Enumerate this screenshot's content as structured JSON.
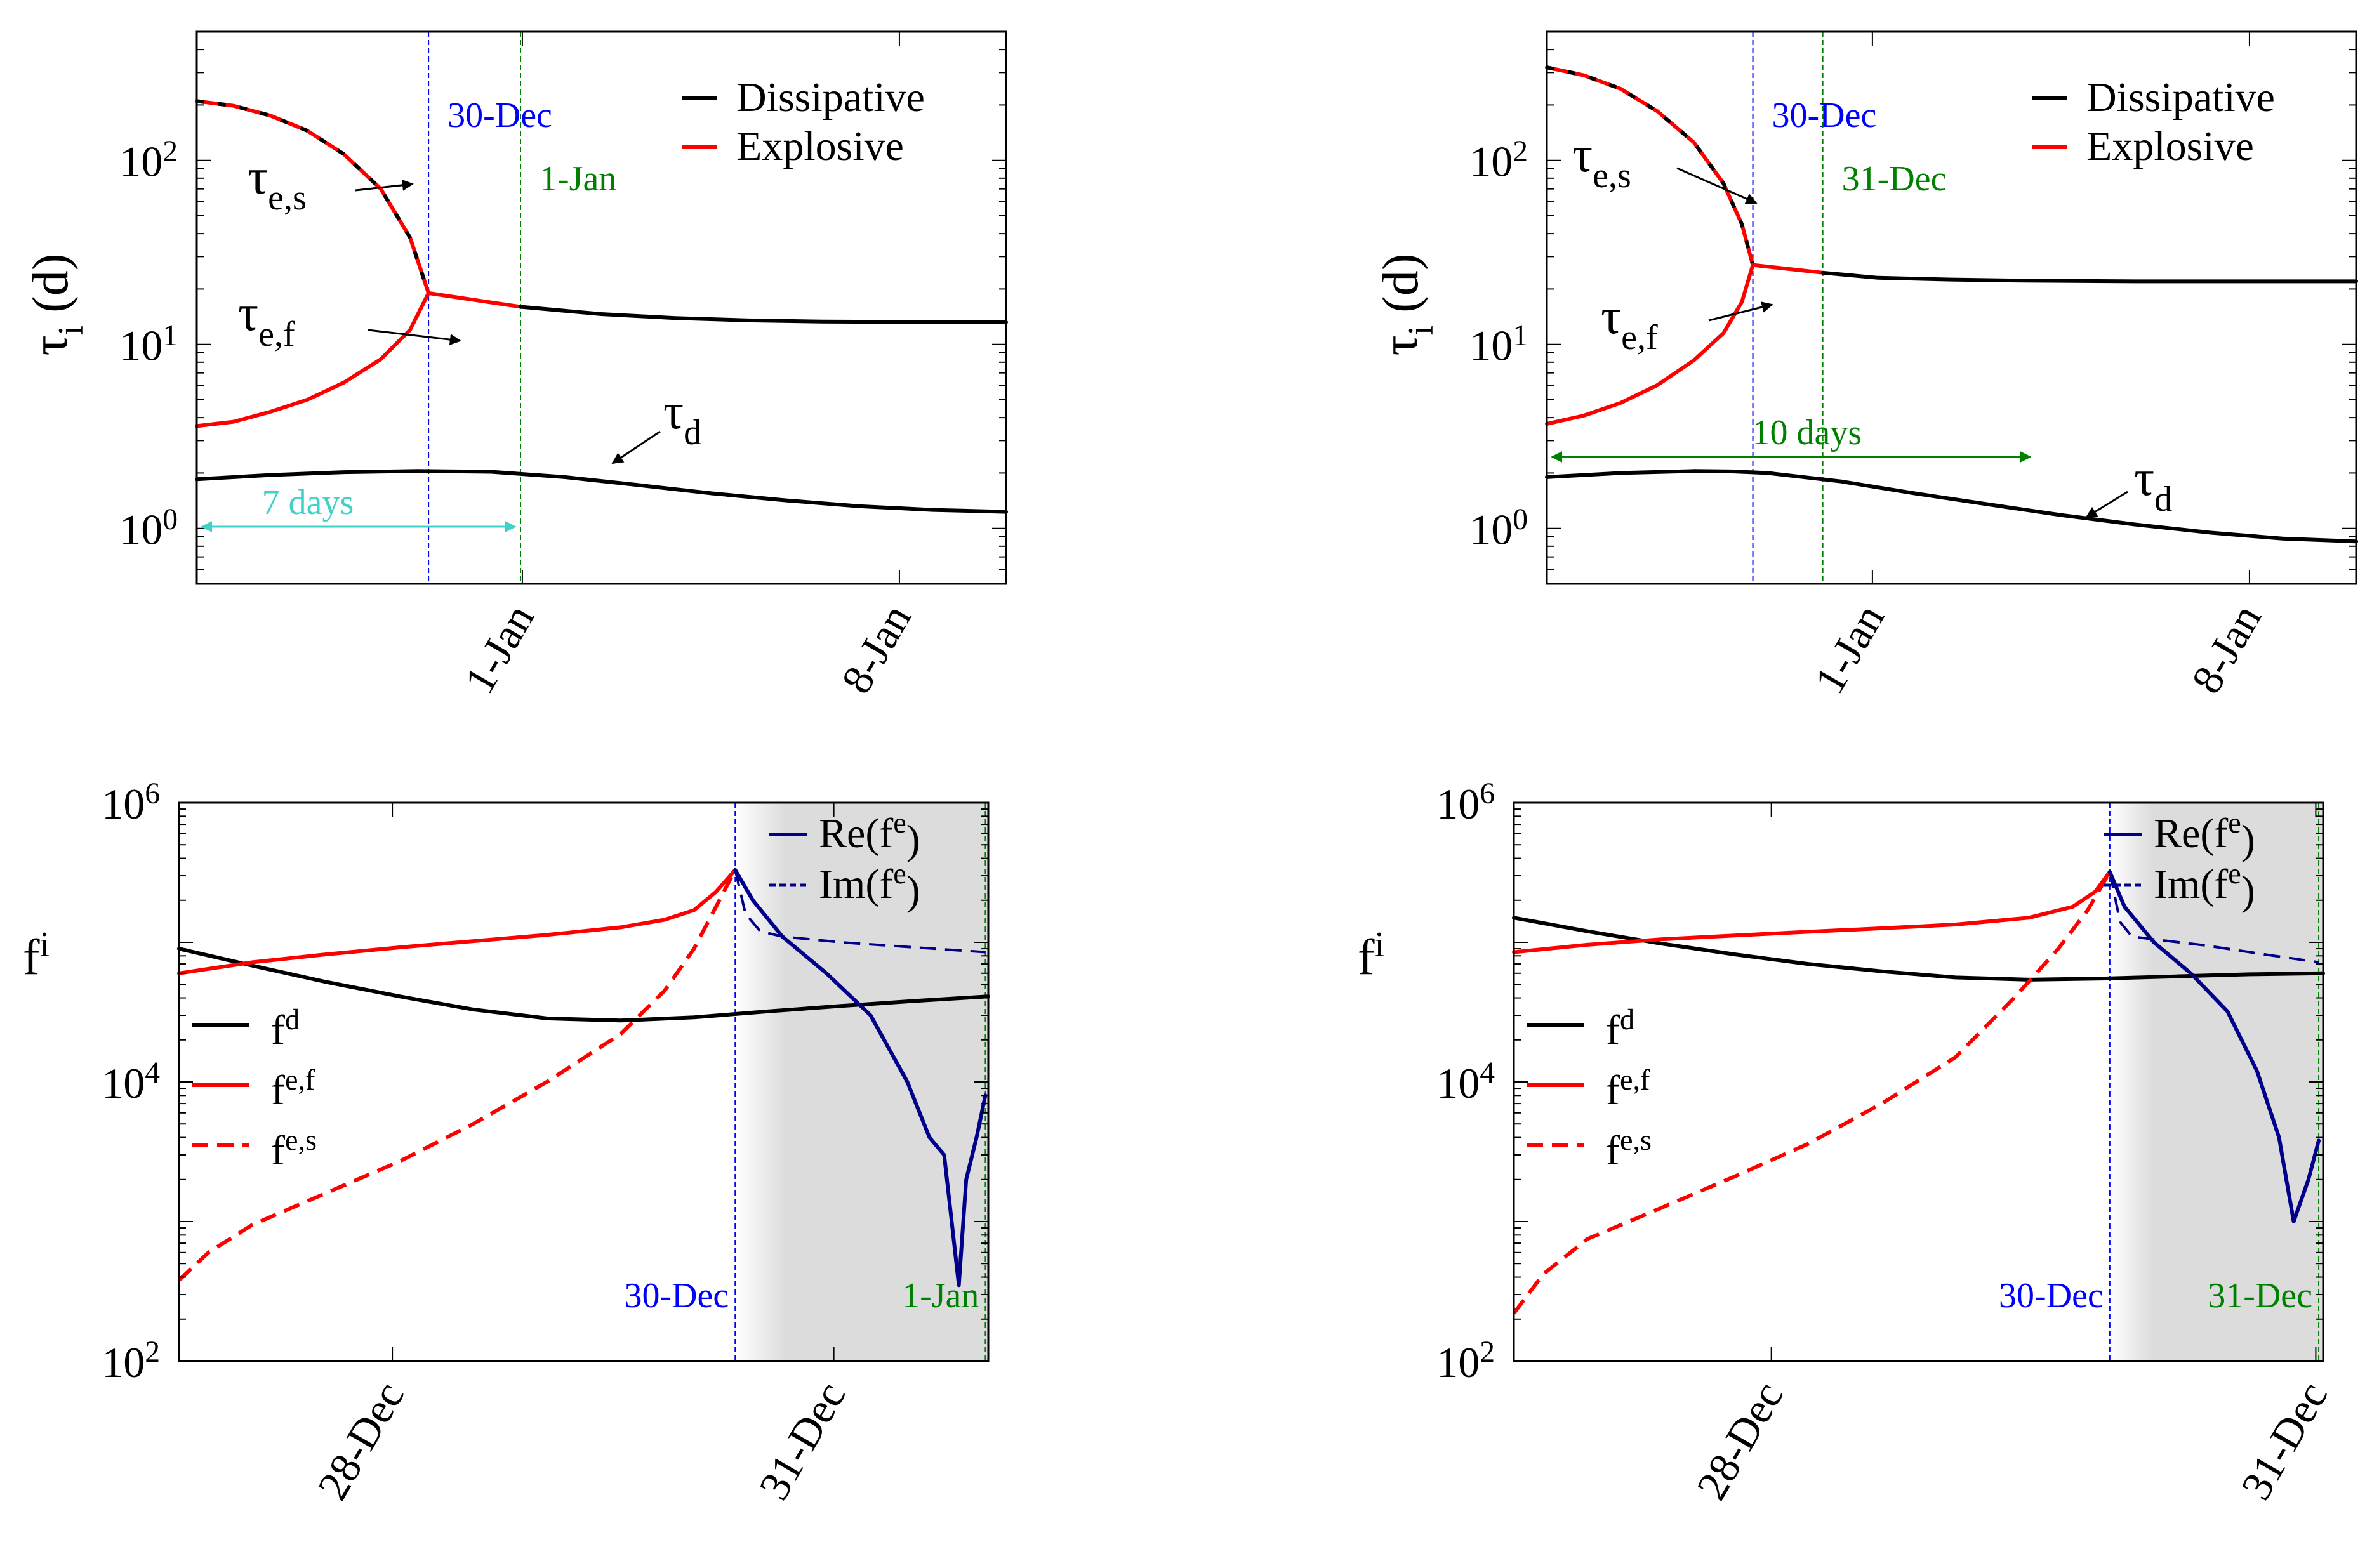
{
  "figure": {
    "description_labels": {
      "date_labels": [
        "30-Dec",
        "1-Jan",
        "31-Dec",
        "28-Dec",
        "8-Jan"
      ]
    }
  },
  "chart_data": [
    {
      "type": "line",
      "panel": "top-left",
      "ylabel": "τi (d)",
      "yscale": "log",
      "ylim": [
        0.5,
        500
      ],
      "xlim": [
        0,
        22
      ],
      "x_unit": "days",
      "yticks": [
        {
          "v": 1,
          "b": "10",
          "e": "0"
        },
        {
          "v": 10,
          "b": "10",
          "e": "1"
        },
        {
          "v": 100,
          "b": "10",
          "e": "2"
        }
      ],
      "xticks": [
        {
          "x": 8.85,
          "label": "1-Jan"
        },
        {
          "x": 19.1,
          "label": "8-Jan"
        }
      ],
      "vlines": [
        {
          "x": 6.3,
          "color": "#0000ff",
          "label": "30-Dec"
        },
        {
          "x": 8.8,
          "color": "#008000",
          "label": "1-Jan"
        }
      ],
      "legend": {
        "position": "top-right",
        "entries": [
          "Dissipative",
          "Explosive"
        ]
      },
      "arrow_label": "7 days",
      "arrow_color": "#3fd3c8",
      "annotations": [
        {
          "text": "τ",
          "sub": "e,s"
        },
        {
          "text": "τ",
          "sub": "e,f"
        },
        {
          "text": "τ",
          "sub": "d"
        }
      ],
      "series": [
        {
          "name": "τd",
          "color": "#000000",
          "style": "solid",
          "x": [
            0,
            2,
            4,
            6,
            8,
            10,
            12,
            14,
            16,
            18,
            20,
            22
          ],
          "y": [
            1.85,
            1.95,
            2.02,
            2.05,
            2.03,
            1.9,
            1.72,
            1.55,
            1.42,
            1.32,
            1.26,
            1.23
          ]
        },
        {
          "name": "Explosive (upper)",
          "color": "#ff0000",
          "style": "solid",
          "x": [
            0,
            1,
            2,
            3,
            4,
            5,
            5.8,
            6.3
          ],
          "y": [
            210,
            198,
            175,
            145,
            108,
            70,
            38,
            19
          ]
        },
        {
          "name": "Dissipative (upper, dashed overlay)",
          "color": "#000000",
          "style": "dashed",
          "x": [
            0,
            1,
            2,
            3,
            4,
            5,
            5.8,
            6.3
          ],
          "y": [
            210,
            198,
            175,
            145,
            108,
            70,
            38,
            19
          ]
        },
        {
          "name": "Explosive (lower)",
          "color": "#ff0000",
          "style": "solid",
          "x": [
            0,
            1,
            2,
            3,
            4,
            5,
            5.8,
            6.3
          ],
          "y": [
            3.6,
            3.8,
            4.3,
            5.0,
            6.2,
            8.3,
            12,
            19
          ]
        },
        {
          "name": "Explosive (merged)",
          "color": "#ff0000",
          "style": "solid",
          "x": [
            6.3,
            8.8
          ],
          "y": [
            19,
            16
          ]
        },
        {
          "name": "Dissipative (merged)",
          "color": "#000000",
          "style": "solid",
          "x": [
            8.8,
            11,
            13,
            15,
            17,
            19,
            22
          ],
          "y": [
            16,
            14.6,
            13.9,
            13.5,
            13.3,
            13.25,
            13.2
          ]
        }
      ]
    },
    {
      "type": "line",
      "panel": "top-right",
      "ylabel": "τi (d)",
      "yscale": "log",
      "ylim": [
        0.5,
        500
      ],
      "xlim": [
        0,
        22
      ],
      "x_unit": "days",
      "yticks": [
        {
          "v": 1,
          "b": "10",
          "e": "0"
        },
        {
          "v": 10,
          "b": "10",
          "e": "1"
        },
        {
          "v": 100,
          "b": "10",
          "e": "2"
        }
      ],
      "xticks": [
        {
          "x": 8.85,
          "label": "1-Jan"
        },
        {
          "x": 19.1,
          "label": "8-Jan"
        }
      ],
      "vlines": [
        {
          "x": 5.6,
          "color": "#0000ff",
          "label": "30-Dec"
        },
        {
          "x": 7.5,
          "color": "#008000",
          "label": "31-Dec"
        }
      ],
      "legend": {
        "position": "top-right",
        "entries": [
          "Dissipative",
          "Explosive"
        ]
      },
      "arrow_label": "10 days",
      "arrow_color": "#008000",
      "annotations": [
        {
          "text": "τ",
          "sub": "e,s"
        },
        {
          "text": "τ",
          "sub": "e,f"
        },
        {
          "text": "τ",
          "sub": "d"
        }
      ],
      "series": [
        {
          "name": "τd",
          "color": "#000000",
          "style": "solid",
          "x": [
            0,
            2,
            4,
            5,
            6,
            8,
            10,
            12,
            14,
            16,
            18,
            20,
            22
          ],
          "y": [
            1.9,
            2.0,
            2.05,
            2.04,
            2.0,
            1.8,
            1.55,
            1.35,
            1.18,
            1.05,
            0.95,
            0.88,
            0.85
          ]
        },
        {
          "name": "Explosive (upper)",
          "color": "#ff0000",
          "style": "solid",
          "x": [
            0,
            1,
            2,
            3,
            4,
            4.8,
            5.3,
            5.6
          ],
          "y": [
            320,
            290,
            245,
            185,
            125,
            75,
            45,
            27
          ]
        },
        {
          "name": "Dissipative (upper, dashed overlay)",
          "color": "#000000",
          "style": "dashed",
          "x": [
            0,
            1,
            2,
            3,
            4,
            4.8,
            5.3,
            5.6
          ],
          "y": [
            320,
            290,
            245,
            185,
            125,
            75,
            45,
            27
          ]
        },
        {
          "name": "Explosive (lower)",
          "color": "#ff0000",
          "style": "solid",
          "x": [
            0,
            1,
            2,
            3,
            4,
            4.8,
            5.3,
            5.6
          ],
          "y": [
            3.7,
            4.1,
            4.8,
            6.0,
            8.2,
            11.5,
            17,
            27
          ]
        },
        {
          "name": "Explosive (merged)",
          "color": "#ff0000",
          "style": "solid",
          "x": [
            5.6,
            7.5
          ],
          "y": [
            27,
            24.5
          ]
        },
        {
          "name": "Dissipative (merged)",
          "color": "#000000",
          "style": "solid",
          "x": [
            7.5,
            9,
            11,
            13,
            16,
            19,
            22
          ],
          "y": [
            24.5,
            23.0,
            22.5,
            22.2,
            22.0,
            22.0,
            22.0
          ]
        }
      ]
    },
    {
      "type": "line",
      "panel": "bottom-left",
      "ylabel": "fi",
      "yscale": "log",
      "ylim": [
        100,
        1000000
      ],
      "xlim": [
        0,
        5.5
      ],
      "x_unit": "days",
      "yticks": [
        {
          "v": 100,
          "b": "10",
          "e": "2"
        },
        {
          "v": 10000,
          "b": "10",
          "e": "4"
        },
        {
          "v": 1000000,
          "b": "10",
          "e": "6"
        }
      ],
      "xticks": [
        {
          "x": 1.45,
          "label": "28-Dec"
        },
        {
          "x": 4.45,
          "label": "31-Dec"
        }
      ],
      "vlines": [
        {
          "x": 3.78,
          "color": "#0000ff",
          "label": "30-Dec"
        },
        {
          "x": 5.48,
          "color": "#008000",
          "label": "1-Jan"
        }
      ],
      "shaded_region": [
        3.78,
        5.5
      ],
      "legend_left": {
        "position": "left",
        "entries": [
          {
            "b": "f",
            "e": "d"
          },
          {
            "b": "f",
            "e": "e,f"
          },
          {
            "b": "f",
            "e": "e,s"
          }
        ]
      },
      "legend_right": {
        "position": "top-right",
        "entries": [
          {
            "pre": "Re(f",
            "e": "e",
            "post": ")"
          },
          {
            "pre": "Im(f",
            "e": "e",
            "post": ")"
          }
        ]
      },
      "series": [
        {
          "name": "fd",
          "color": "#000000",
          "style": "solid",
          "x": [
            0,
            0.5,
            1,
            1.5,
            2,
            2.5,
            3,
            3.5,
            4,
            4.5,
            5,
            5.5
          ],
          "y": [
            90000,
            68000,
            52000,
            41000,
            33000,
            28500,
            27500,
            29000,
            32000,
            35000,
            38000,
            41000
          ]
        },
        {
          "name": "fe,f",
          "color": "#ff0000",
          "style": "solid",
          "x": [
            0,
            0.5,
            1,
            1.5,
            2,
            2.5,
            3,
            3.3,
            3.5,
            3.65,
            3.78
          ],
          "y": [
            60000,
            72000,
            82000,
            92000,
            102000,
            113000,
            128000,
            145000,
            170000,
            230000,
            330000
          ]
        },
        {
          "name": "fe,s",
          "color": "#ff0000",
          "style": "dashed",
          "x": [
            0,
            0.2,
            0.5,
            1,
            1.5,
            2,
            2.5,
            3,
            3.3,
            3.5,
            3.65,
            3.78
          ],
          "y": [
            380,
            600,
            950,
            1600,
            2700,
            5000,
            10000,
            22000,
            45000,
            90000,
            180000,
            330000
          ]
        },
        {
          "name": "Re(fe)",
          "color": "#00008b",
          "style": "solid",
          "x": [
            3.78,
            3.9,
            4.1,
            4.4,
            4.7,
            4.95,
            5.1,
            5.2,
            5.3,
            5.35,
            5.42,
            5.48
          ],
          "y": [
            330000,
            200000,
            110000,
            60000,
            30000,
            10000,
            4000,
            3000,
            350,
            2000,
            4000,
            8000
          ]
        },
        {
          "name": "Im(fe)",
          "color": "#00008b",
          "style": "dashed",
          "x": [
            3.78,
            3.85,
            3.95,
            4.1,
            4.5,
            5,
            5.48
          ],
          "y": [
            330000,
            160000,
            120000,
            110000,
            100000,
            92000,
            85000
          ]
        }
      ]
    },
    {
      "type": "line",
      "panel": "bottom-right",
      "ylabel": "fi",
      "yscale": "log",
      "ylim": [
        100,
        1000000
      ],
      "xlim": [
        0,
        5.5
      ],
      "x_unit": "days",
      "yticks": [
        {
          "v": 100,
          "b": "10",
          "e": "2"
        },
        {
          "v": 10000,
          "b": "10",
          "e": "4"
        },
        {
          "v": 1000000,
          "b": "10",
          "e": "6"
        }
      ],
      "xticks": [
        {
          "x": 1.75,
          "label": "28-Dec"
        },
        {
          "x": 5.45,
          "label": "31-Dec"
        }
      ],
      "vlines": [
        {
          "x": 4.05,
          "color": "#0000ff",
          "label": "30-Dec"
        },
        {
          "x": 5.47,
          "color": "#008000",
          "label": "31-Dec"
        }
      ],
      "shaded_region": [
        4.05,
        5.5
      ],
      "legend_left": {
        "position": "left",
        "entries": [
          {
            "b": "f",
            "e": "d"
          },
          {
            "b": "f",
            "e": "e,f"
          },
          {
            "b": "f",
            "e": "e,s"
          }
        ]
      },
      "legend_right": {
        "position": "top-right",
        "entries": [
          {
            "pre": "Re(f",
            "e": "e",
            "post": ")"
          },
          {
            "pre": "Im(f",
            "e": "e",
            "post": ")"
          }
        ]
      },
      "series": [
        {
          "name": "fd",
          "color": "#000000",
          "style": "solid",
          "x": [
            0,
            0.5,
            1,
            1.5,
            2,
            2.5,
            3,
            3.5,
            4,
            4.5,
            5,
            5.5
          ],
          "y": [
            150000,
            120000,
            98000,
            82000,
            70000,
            62000,
            56000,
            54000,
            55000,
            57000,
            59000,
            60000
          ]
        },
        {
          "name": "fe,f",
          "color": "#ff0000",
          "style": "solid",
          "x": [
            0,
            0.5,
            1,
            1.5,
            2,
            2.5,
            3,
            3.5,
            3.8,
            3.95,
            4.05
          ],
          "y": [
            85000,
            96000,
            105000,
            112000,
            119000,
            126000,
            134000,
            150000,
            180000,
            230000,
            320000
          ]
        },
        {
          "name": "fe,s",
          "color": "#ff0000",
          "style": "dashed",
          "x": [
            0,
            0.2,
            0.5,
            1,
            1.5,
            2,
            2.5,
            3,
            3.4,
            3.7,
            3.9,
            4.05
          ],
          "y": [
            220,
            420,
            750,
            1250,
            2100,
            3600,
            7000,
            15000,
            40000,
            90000,
            170000,
            320000
          ]
        },
        {
          "name": "Re(fe)",
          "color": "#00008b",
          "style": "solid",
          "x": [
            4.05,
            4.15,
            4.35,
            4.6,
            4.85,
            5.05,
            5.2,
            5.25,
            5.3,
            5.4,
            5.47
          ],
          "y": [
            320000,
            180000,
            100000,
            60000,
            32000,
            12000,
            4000,
            2000,
            1000,
            2000,
            3800
          ]
        },
        {
          "name": "Im(fe)",
          "color": "#00008b",
          "style": "dashed",
          "x": [
            4.05,
            4.12,
            4.2,
            4.35,
            4.7,
            5.1,
            5.47
          ],
          "y": [
            320000,
            140000,
            110000,
            105000,
            95000,
            82000,
            72000
          ]
        }
      ]
    }
  ]
}
